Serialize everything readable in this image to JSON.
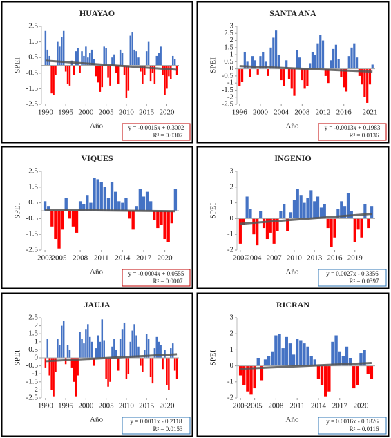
{
  "chart_data": [
    {
      "type": "bar",
      "title": "HUAYAO",
      "xlabel": "Año",
      "ylabel": "SPEI",
      "pos_color": "#4472c4",
      "neg_color": "#ff0000",
      "box_color": "#c00000",
      "x": [
        1990,
        1990.5,
        1991,
        1991.5,
        1992,
        1992.5,
        1993,
        1993.5,
        1994,
        1994.5,
        1995,
        1995.5,
        1996,
        1996.5,
        1997,
        1997.5,
        1998,
        1998.5,
        1999,
        1999.5,
        2000,
        2000.5,
        2001,
        2001.5,
        2002,
        2002.5,
        2003,
        2003.5,
        2004,
        2004.5,
        2005,
        2005.5,
        2006,
        2006.5,
        2007,
        2007.5,
        2008,
        2008.5,
        2009,
        2009.5,
        2010,
        2010.5,
        2011,
        2011.5,
        2012,
        2012.5,
        2013,
        2013.5,
        2014,
        2014.5,
        2015,
        2015.5,
        2016,
        2016.5,
        2017,
        2017.5,
        2018,
        2018.5,
        2019,
        2019.5,
        2020,
        2020.5,
        2021,
        2021.5,
        2022,
        2022.5
      ],
      "values": [
        2.2,
        1.0,
        0.6,
        -1.8,
        -1.9,
        -0.6,
        1.5,
        1.2,
        1.8,
        2.2,
        -0.4,
        -1.2,
        -1.3,
        0.3,
        -0.6,
        0.9,
        1.1,
        -0.5,
        0.9,
        0.6,
        1.2,
        0.5,
        0.8,
        1.0,
        0.4,
        -0.7,
        -1.1,
        -1.7,
        -1.4,
        1.2,
        1.1,
        -0.8,
        -1.3,
        0.5,
        0.7,
        -0.5,
        -1.2,
        1.0,
        0.8,
        -0.6,
        -2.1,
        -1.6,
        1.9,
        2.1,
        1.0,
        0.9,
        0.5,
        -0.4,
        -1.2,
        -0.6,
        0.9,
        1.5,
        -1.0,
        -0.5,
        -1.2,
        0.6,
        0.8,
        1.2,
        -0.6,
        -1.9,
        -1.5,
        -0.7,
        -0.9,
        0.6,
        0.4,
        -0.6
      ],
      "xlim": [
        1989,
        2023
      ],
      "xticks": [
        1990,
        1995,
        2000,
        2005,
        2010,
        2015,
        2020
      ],
      "ylim": [
        -2.5,
        2.5
      ],
      "yticks": [
        2.5,
        1.5,
        0.5,
        -0.5,
        -1.5,
        -2.5
      ],
      "trendline": {
        "slope": -0.0015,
        "intercept": 0.3002,
        "equation": "y = -0.0015x + 0.3002",
        "r2_label": "R² = 0.0307"
      }
    },
    {
      "type": "bar",
      "title": "SANTA ANA",
      "xlabel": "Año",
      "ylabel": "SPEI",
      "pos_color": "#4472c4",
      "neg_color": "#ff0000",
      "box_color": "#c00000",
      "x": [
        1996,
        1996.5,
        1997,
        1997.5,
        1998,
        1998.5,
        1999,
        1999.5,
        2000,
        2000.5,
        2001,
        2001.5,
        2002,
        2002.5,
        2003,
        2003.5,
        2004,
        2004.5,
        2005,
        2005.5,
        2006,
        2006.5,
        2007,
        2007.5,
        2008,
        2008.5,
        2009,
        2009.5,
        2010,
        2010.5,
        2011,
        2011.5,
        2012,
        2012.5,
        2013,
        2013.5,
        2014,
        2014.5,
        2015,
        2015.5,
        2016,
        2016.5,
        2017,
        2017.5,
        2018,
        2018.5,
        2019,
        2019.5,
        2020,
        2020.5,
        2021,
        2021.5
      ],
      "values": [
        -1.2,
        -0.9,
        1.2,
        0.5,
        -0.6,
        0.9,
        0.6,
        -0.4,
        0.9,
        1.2,
        0.5,
        -0.5,
        1.5,
        2.2,
        2.7,
        1.0,
        -0.8,
        -1.2,
        0.6,
        -0.7,
        -1.4,
        -1.9,
        1.3,
        0.8,
        -0.8,
        -1.4,
        -1.2,
        0.4,
        1.2,
        1.0,
        1.8,
        2.4,
        2.0,
        -0.5,
        -1.0,
        0.6,
        1.4,
        1.7,
        0.7,
        -0.6,
        -1.3,
        -1.6,
        0.9,
        1.5,
        1.8,
        0.8,
        -0.5,
        -1.1,
        -2.0,
        -2.4,
        -1.1,
        0.3
      ],
      "xlim": [
        1995.5,
        2022
      ],
      "xticks": [
        1996,
        2000,
        2004,
        2008,
        2012,
        2016,
        2021
      ],
      "ylim": [
        -2.5,
        3
      ],
      "yticks": [
        3,
        2.5,
        2,
        1.5,
        1,
        0.5,
        0,
        -0.5,
        -1,
        -1.5,
        -2,
        -2.5
      ],
      "trendline": {
        "slope": -0.0013,
        "intercept": 0.1983,
        "equation": "y = -0.0013x + 0.1983",
        "r2_label": "R² = 0.0136"
      }
    },
    {
      "type": "bar",
      "title": "VIQUES",
      "xlabel": "Año",
      "ylabel": "SPEI",
      "pos_color": "#4472c4",
      "neg_color": "#ff0000",
      "box_color": "#c00000",
      "x": [
        2003,
        2003.5,
        2004,
        2004.5,
        2005,
        2005.5,
        2006,
        2006.5,
        2007,
        2007.5,
        2008,
        2008.5,
        2009,
        2009.5,
        2010,
        2010.5,
        2011,
        2011.5,
        2012,
        2012.5,
        2013,
        2013.5,
        2014,
        2014.5,
        2015,
        2015.5,
        2016,
        2016.5,
        2017,
        2017.5,
        2018,
        2018.5,
        2019,
        2019.5,
        2020,
        2020.5,
        2021,
        2021.5
      ],
      "values": [
        0.6,
        0.3,
        -1.0,
        -1.8,
        -2.4,
        -1.2,
        0.8,
        -0.5,
        -1.0,
        -1.4,
        0.6,
        0.4,
        1.0,
        0.5,
        2.1,
        2.0,
        1.8,
        1.5,
        0.8,
        1.8,
        1.2,
        0.6,
        0.5,
        0.8,
        -0.5,
        -1.2,
        0.3,
        1.4,
        0.9,
        1.2,
        0.6,
        -0.6,
        -1.1,
        -0.9,
        -1.8,
        -2.0,
        -0.8,
        1.4
      ],
      "xlim": [
        2002.5,
        2022
      ],
      "xticks": [
        2003,
        2005,
        2008,
        2011,
        2014,
        2017,
        2020
      ],
      "ylim": [
        -2.5,
        2.5
      ],
      "yticks": [
        2.5,
        1.5,
        0.5,
        -0.5,
        -1.5,
        -2.5
      ],
      "trendline": {
        "slope": -0.0004,
        "intercept": 0.0555,
        "equation": "y = -0.0004x + 0.0555",
        "r2_label": "R² = 0.0007"
      }
    },
    {
      "type": "bar",
      "title": "INGENIO",
      "xlabel": "Año",
      "ylabel": "SPEI",
      "pos_color": "#4472c4",
      "neg_color": "#ff0000",
      "box_color": "#2e75b6",
      "x": [
        2002,
        2002.5,
        2003,
        2003.5,
        2004,
        2004.5,
        2005,
        2005.5,
        2006,
        2006.5,
        2007,
        2007.5,
        2008,
        2008.5,
        2009,
        2009.5,
        2010,
        2010.5,
        2011,
        2011.5,
        2012,
        2012.5,
        2013,
        2013.5,
        2014,
        2014.5,
        2015,
        2015.5,
        2016,
        2016.5,
        2017,
        2017.5,
        2018,
        2018.5,
        2019,
        2019.5,
        2020,
        2020.5,
        2021,
        2021.5
      ],
      "values": [
        -1.6,
        -0.4,
        1.4,
        0.6,
        -1.0,
        -1.7,
        0.5,
        -0.6,
        -1.3,
        -0.9,
        -1.6,
        -0.8,
        0.5,
        0.9,
        -0.8,
        0.4,
        1.2,
        1.9,
        1.5,
        1.0,
        1.3,
        1.8,
        1.1,
        1.4,
        0.7,
        0.9,
        -0.6,
        -1.8,
        -1.2,
        0.6,
        1.1,
        0.8,
        1.6,
        0.5,
        -1.5,
        -0.7,
        -1.2,
        0.9,
        -0.6,
        0.8
      ],
      "xlim": [
        2001.5,
        2022
      ],
      "xticks": [
        2002,
        2004,
        2007,
        2010,
        2013,
        2016,
        2019
      ],
      "ylim": [
        -2,
        3
      ],
      "yticks": [
        3,
        2,
        1,
        0,
        -1,
        -2
      ],
      "trendline": {
        "slope": 0.0027,
        "intercept": -0.3356,
        "equation": "y = 0.0027x - 0.3356",
        "r2_label": "R² = 0.0397"
      }
    },
    {
      "type": "bar",
      "title": "JAUJA",
      "xlabel": "Año",
      "ylabel": "SPEI",
      "pos_color": "#4472c4",
      "neg_color": "#ff0000",
      "box_color": "#2e75b6",
      "x": [
        1990,
        1990.5,
        1991,
        1991.5,
        1992,
        1992.5,
        1993,
        1993.5,
        1994,
        1994.5,
        1995,
        1995.5,
        1996,
        1996.5,
        1997,
        1997.5,
        1998,
        1998.5,
        1999,
        1999.5,
        2000,
        2000.5,
        2001,
        2001.5,
        2002,
        2002.5,
        2003,
        2003.5,
        2004,
        2004.5,
        2005,
        2005.5,
        2006,
        2006.5,
        2007,
        2007.5,
        2008,
        2008.5,
        2009,
        2009.5,
        2010,
        2010.5,
        2011,
        2011.5,
        2012,
        2012.5,
        2013,
        2013.5,
        2014,
        2014.5,
        2015,
        2015.5,
        2016,
        2016.5,
        2017,
        2017.5,
        2018,
        2018.5,
        2019,
        2019.5,
        2020,
        2020.5,
        2021,
        2021.5,
        2022,
        2022.5
      ],
      "values": [
        -0.6,
        1.2,
        -1.1,
        -2.0,
        -2.4,
        -0.9,
        1.2,
        0.8,
        2.0,
        2.3,
        -0.4,
        0.8,
        0.5,
        -0.6,
        -1.5,
        -2.4,
        -1.1,
        1.6,
        1.2,
        0.9,
        1.8,
        2.1,
        1.3,
        1.0,
        -0.5,
        0.6,
        1.4,
        1.0,
        2.4,
        1.1,
        -1.3,
        -1.8,
        -1.5,
        0.7,
        1.2,
        0.5,
        -0.8,
        1.2,
        1.8,
        2.2,
        -1.3,
        -1.0,
        1.0,
        1.7,
        2.1,
        1.4,
        0.7,
        -0.5,
        -0.9,
        0.5,
        1.5,
        1.2,
        -1.2,
        -1.6,
        0.6,
        1.3,
        1.0,
        0.8,
        -0.7,
        0.5,
        -1.7,
        -2.0,
        0.6,
        0.9,
        -0.8,
        -1.3
      ],
      "xlim": [
        1989,
        2023
      ],
      "xticks": [
        1990,
        1995,
        2000,
        2005,
        2010,
        2015,
        2020
      ],
      "ylim": [
        -2.5,
        2.5
      ],
      "yticks": [
        2.5,
        2,
        1.5,
        1,
        0.5,
        0,
        -0.5,
        -1,
        -1.5,
        -2,
        -2.5
      ],
      "trendline": {
        "slope": 0.0011,
        "intercept": -0.2118,
        "equation": "y = 0.0011x - 0.2118",
        "r2_label": "R² = 0.0153"
      }
    },
    {
      "type": "bar",
      "title": "RICRAN",
      "xlabel": "Año",
      "ylabel": "SPEI",
      "pos_color": "#4472c4",
      "neg_color": "#ff0000",
      "box_color": "#2e75b6",
      "x": [
        2003,
        2003.5,
        2004,
        2004.5,
        2005,
        2005.5,
        2006,
        2006.5,
        2007,
        2007.5,
        2008,
        2008.5,
        2009,
        2009.5,
        2010,
        2010.5,
        2011,
        2011.5,
        2012,
        2012.5,
        2013,
        2013.5,
        2014,
        2014.5,
        2015,
        2015.5,
        2016,
        2016.5,
        2017,
        2017.5,
        2018,
        2018.5,
        2019,
        2019.5,
        2020,
        2020.5,
        2021,
        2021.5
      ],
      "values": [
        -0.6,
        -1.2,
        -1.6,
        -1.8,
        -1.4,
        0.5,
        -0.9,
        0.4,
        0.6,
        0.9,
        1.9,
        2.0,
        1.1,
        1.8,
        1.4,
        0.7,
        1.7,
        1.6,
        1.4,
        1.2,
        0.6,
        0.4,
        -0.8,
        -1.2,
        -1.9,
        -1.6,
        1.5,
        1.9,
        0.9,
        0.6,
        1.2,
        0.5,
        -1.4,
        -1.2,
        0.8,
        1.0,
        -0.5,
        -0.8
      ],
      "xlim": [
        2002.5,
        2022
      ],
      "xticks": [
        2003,
        2005,
        2008,
        2011,
        2014,
        2017,
        2020
      ],
      "ylim": [
        -2,
        3
      ],
      "yticks": [
        3,
        2,
        1,
        0,
        -1,
        -2
      ],
      "trendline": {
        "slope": 0.0016,
        "intercept": -0.1826,
        "equation": "y = 0.0016x - 0.1826",
        "r2_label": "R² = 0.0116"
      }
    }
  ]
}
